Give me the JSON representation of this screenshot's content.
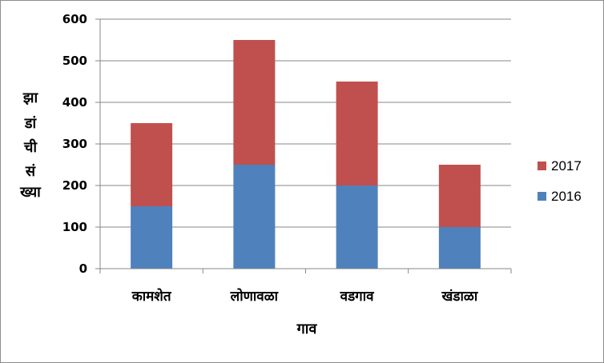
{
  "chart_data": {
    "type": "bar",
    "stacked": true,
    "categories": [
      "कामशेत",
      "लोणावळा",
      "वडगाव",
      "खंडाळा"
    ],
    "series": [
      {
        "name": "2016",
        "values": [
          150,
          250,
          200,
          100
        ],
        "color": "#4f81bd"
      },
      {
        "name": "2017",
        "values": [
          200,
          300,
          250,
          150
        ],
        "color": "#c0504d"
      }
    ],
    "xlabel": "गाव",
    "ylabel_lines": [
      "झा",
      "डां",
      "ची",
      "सं",
      "ख्या"
    ],
    "ylim": [
      0,
      600
    ],
    "yticks": [
      "0",
      "100",
      "200",
      "300",
      "400",
      "500",
      "600"
    ],
    "grid": true,
    "legend_position": "right"
  }
}
